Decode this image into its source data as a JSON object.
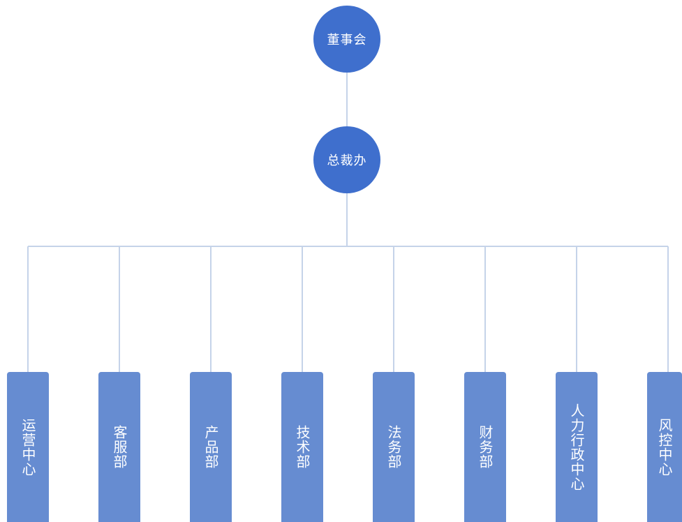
{
  "top_node": {
    "label": "董事会"
  },
  "second_node": {
    "label": "总裁办"
  },
  "departments": [
    {
      "label": "运营中心"
    },
    {
      "label": "客服部"
    },
    {
      "label": "产品部"
    },
    {
      "label": "技术部"
    },
    {
      "label": "法务部"
    },
    {
      "label": "财务部"
    },
    {
      "label": "人力行政中心"
    },
    {
      "label": "风控中心"
    }
  ],
  "colors": {
    "node_fill": "#3f6fcd",
    "dept_fill": "#668cd1",
    "connector": "#c5d3e9",
    "text": "#ffffff"
  }
}
